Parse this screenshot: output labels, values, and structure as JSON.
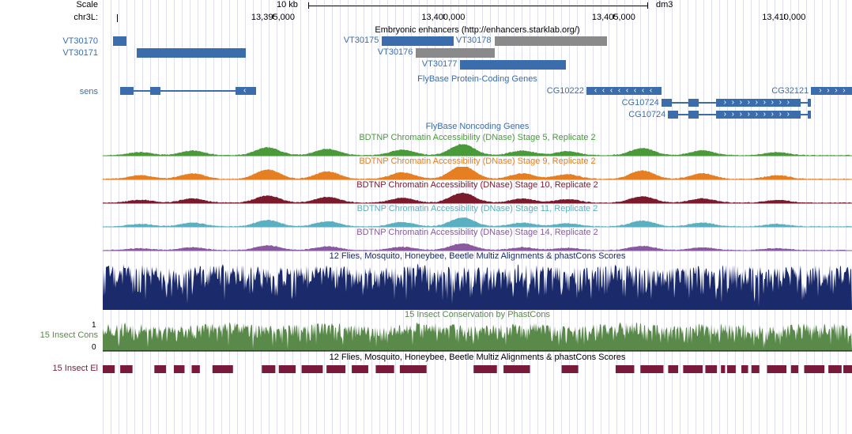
{
  "assembly": "dm3",
  "chrom": "chr3L:",
  "scale_label": "Scale",
  "scale_text": "10 kb",
  "ruler": {
    "start": 13390000,
    "end": 13412000,
    "ticks": [
      13395000,
      13400000,
      13405000,
      13410000
    ],
    "labels": [
      "13,395,000",
      "13,400,000",
      "13,405,000",
      "13,410,000"
    ]
  },
  "track_titles": {
    "enhancers": "Embryonic enhancers (http://enhancers.starklab.org/)",
    "coding": "FlyBase Protein-Coding Genes",
    "noncoding": "FlyBase Noncoding Genes",
    "dnase5": "BDTNP Chromatin Accessibility (DNase) Stage 5, Replicate 2",
    "dnase9": "BDTNP Chromatin Accessibility (DNase) Stage 9, Replicate 2",
    "dnase10": "BDTNP Chromatin Accessibility (DNase) Stage 10, Replicate 2",
    "dnase11": "BDTNP Chromatin Accessibility (DNase) Stage 11, Replicate 2",
    "dnase14": "BDTNP Chromatin Accessibility (DNase) Stage 14, Replicate 2",
    "multiz": "12 Flies, Mosquito, Honeybee, Beetle Multiz Alignments & phastCons Scores",
    "phastcons15": "15 Insect Conservation by PhastCons",
    "multiz2": "12 Flies, Mosquito, Honeybee, Beetle Multiz Alignments & phastCons Scores"
  },
  "side_labels": {
    "cons": "15 Insect Cons",
    "el": "15 Insect El"
  },
  "colors": {
    "blue": "#3b6dad",
    "gray": "#8a8a8a",
    "green": "#4a9a3a",
    "orange": "#e67e22",
    "darkred": "#7a1a2a",
    "cyan": "#5ab0c0",
    "purple": "#8a5aa0",
    "navy": "#1a2a6a",
    "olive": "#5a8a4a",
    "maroon": "#7a1a3a"
  },
  "enhancers": [
    {
      "id": "VT30170",
      "start": 13390300,
      "end": 13390700,
      "row": 0,
      "color": "blue"
    },
    {
      "id": "VT30171",
      "start": 13391000,
      "end": 13394200,
      "row": 1,
      "color": "blue"
    },
    {
      "id": "VT30175",
      "start": 13398200,
      "end": 13400300,
      "row": 0,
      "color": "blue"
    },
    {
      "id": "VT30178",
      "start": 13401500,
      "end": 13404800,
      "row": 0,
      "color": "gray"
    },
    {
      "id": "VT30176",
      "start": 13399200,
      "end": 13401500,
      "row": 1,
      "color": "gray"
    },
    {
      "id": "VT30177",
      "start": 13400500,
      "end": 13403600,
      "row": 2,
      "color": "blue"
    }
  ],
  "genes": [
    {
      "id": "sens",
      "start": 13390500,
      "end": 13394500,
      "row": 0,
      "strand": "-",
      "exons": [
        [
          13390500,
          13390900
        ],
        [
          13391400,
          13391700
        ],
        [
          13393900,
          13394500
        ]
      ]
    },
    {
      "id": "CG10222",
      "start": 13404200,
      "end": 13406400,
      "row": 0,
      "strand": "-",
      "exons": [
        [
          13404200,
          13406400
        ]
      ]
    },
    {
      "id": "CG32121",
      "start": 13410800,
      "end": 13412000,
      "row": 0,
      "strand": "+",
      "exons": [
        [
          13410800,
          13412000
        ]
      ]
    },
    {
      "id": "CG10724",
      "start": 13406400,
      "end": 13410800,
      "row": 1,
      "strand": "+",
      "exons": [
        [
          13406400,
          13406700
        ],
        [
          13407200,
          13407500
        ],
        [
          13408000,
          13410500
        ],
        [
          13410700,
          13410800
        ]
      ]
    },
    {
      "id": "CG10724",
      "start": 13406600,
      "end": 13410800,
      "row": 2,
      "strand": "+",
      "exons": [
        [
          13406600,
          13406900
        ],
        [
          13407200,
          13407500
        ],
        [
          13408000,
          13410500
        ],
        [
          13410700,
          13410800
        ]
      ]
    }
  ],
  "axis_cons": {
    "min": "0",
    "max": "1"
  }
}
